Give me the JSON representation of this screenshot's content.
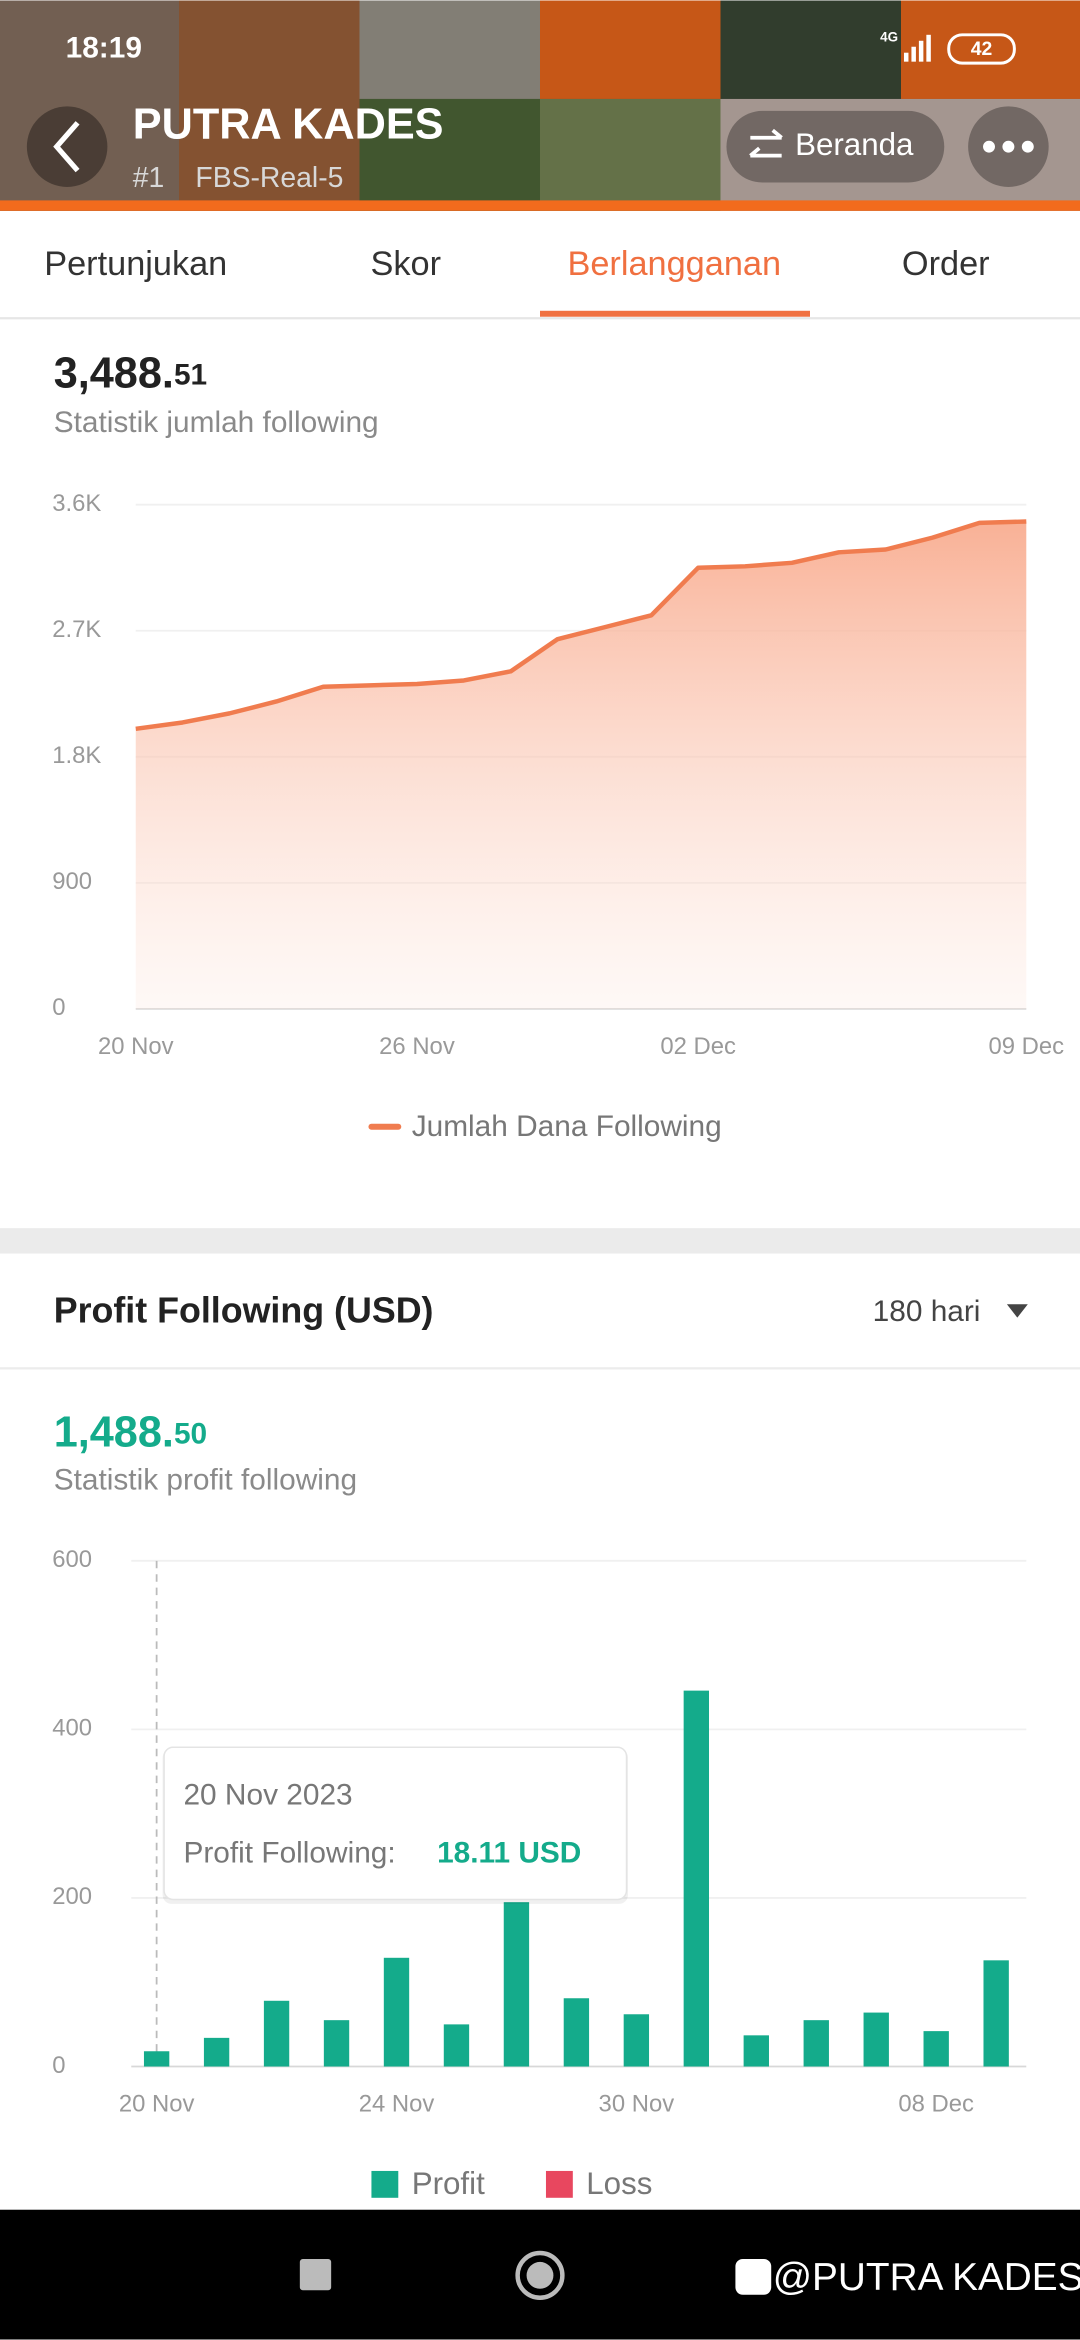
{
  "status_bar": {
    "time": "18:19",
    "network": "4G",
    "battery": "42"
  },
  "header": {
    "title": "PUTRA KADES",
    "rank": "#1",
    "account": "FBS-Real-5",
    "home_button": "Beranda"
  },
  "tabs": {
    "items": [
      "Pertunjukan",
      "Skor",
      "Berlangganan",
      "Order"
    ],
    "active": 2
  },
  "section2": {
    "title": "Profit Following (USD)",
    "period": "180 hari"
  },
  "chart_data": [
    {
      "type": "line",
      "headline_int": "3,488.",
      "headline_dec": "51",
      "subtitle": "Statistik jumlah following",
      "categories": [
        "20 Nov",
        null,
        null,
        null,
        null,
        null,
        "26 Nov",
        null,
        null,
        null,
        null,
        null,
        "02 Dec",
        null,
        null,
        null,
        null,
        null,
        null,
        "09 Dec"
      ],
      "series": [
        {
          "name": "Jumlah Dana Following",
          "color": "#f07c4f",
          "values": [
            2000,
            2045,
            2110,
            2195,
            2300,
            2310,
            2320,
            2345,
            2410,
            2640,
            2725,
            2810,
            3150,
            3160,
            3185,
            3260,
            3280,
            3365,
            3470,
            3480
          ]
        }
      ],
      "ylim": [
        0,
        3600
      ],
      "yticks": [
        0,
        900,
        {
          "value": 1800,
          "label": "1.8K"
        },
        {
          "value": 2700,
          "label": "2.7K"
        },
        {
          "value": 3600,
          "label": "3.6K"
        }
      ],
      "grid": true
    },
    {
      "type": "bar",
      "headline_int": "1,488.",
      "headline_dec": "50",
      "subtitle": "Statistik profit following",
      "categories": [
        "20 Nov",
        null,
        null,
        null,
        "24 Nov",
        null,
        null,
        null,
        "30 Nov",
        null,
        null,
        null,
        null,
        "08 Dec",
        null
      ],
      "series": [
        {
          "name": "Profit",
          "color": "#14ab8b",
          "values": [
            18.11,
            34,
            78,
            55,
            129,
            50,
            195,
            81,
            62,
            446,
            37,
            55,
            64,
            42,
            126
          ]
        },
        {
          "name": "Loss",
          "color": "#e8475f",
          "values": [
            0,
            0,
            0,
            0,
            0,
            0,
            0,
            0,
            0,
            0,
            0,
            0,
            0,
            0,
            0
          ]
        }
      ],
      "ylim": [
        0,
        600
      ],
      "yticks": [
        0,
        200,
        400,
        600
      ],
      "grid": true,
      "tooltip": {
        "title": "20 Nov 2023",
        "label": "Profit Following:",
        "value": "18.11 USD"
      }
    }
  ],
  "watermark": "@PUTRA KADES"
}
